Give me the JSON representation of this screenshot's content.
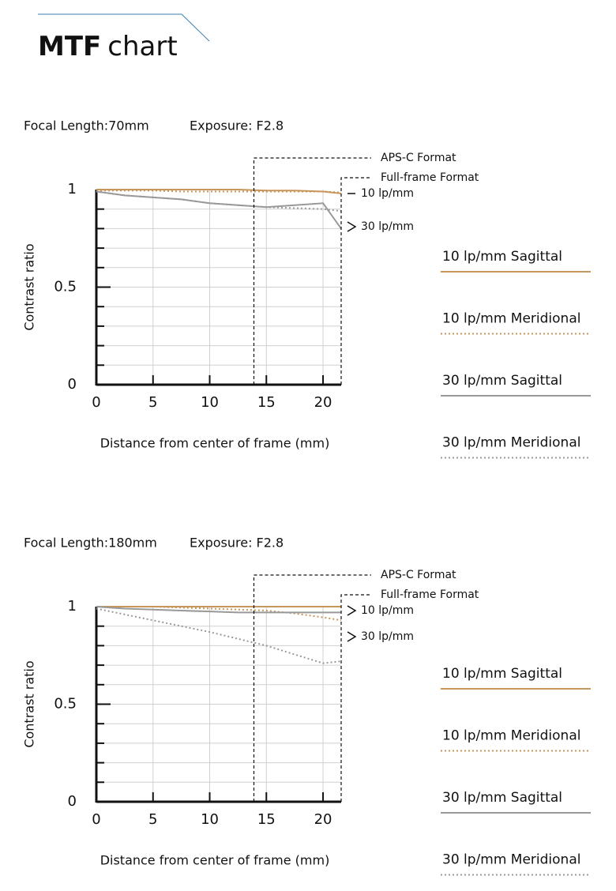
{
  "header": {
    "title_bold": "MTF",
    "title_rest": "chart"
  },
  "chart_data": [
    {
      "type": "line",
      "subtitle": "Focal Length:70mm",
      "exposure": "Exposure: F2.8",
      "x_label": "Distance from center of frame (mm)",
      "y_label": "Contrast ratio",
      "xlim": [
        0,
        21.6
      ],
      "ylim": [
        0,
        1
      ],
      "xticks": [
        0,
        5,
        10,
        15,
        20
      ],
      "yticks": [
        0,
        0.5,
        1
      ],
      "y_minor_ticks": [
        0.1,
        0.2,
        0.3,
        0.4,
        0.5,
        0.6,
        0.7,
        0.8,
        0.9
      ],
      "grid": true,
      "format_lines": [
        {
          "label": "APS-C Format",
          "x": 13.9
        },
        {
          "label": "Full-frame Format",
          "x": 21.6
        }
      ],
      "line_labels": [
        "10 lp/mm",
        "30 lp/mm"
      ],
      "x": [
        0,
        2.5,
        5,
        7.5,
        10,
        12.5,
        15,
        17.5,
        20,
        21.6
      ],
      "series": [
        {
          "name": "10 lp/mm Sagittal",
          "color": "#c8955a",
          "dash": "solid",
          "values": [
            1,
            1,
            1,
            1,
            1,
            1,
            0.995,
            0.995,
            0.99,
            0.98
          ]
        },
        {
          "name": "10 lp/mm Meridional",
          "color": "#c8955a",
          "dash": "dotted",
          "values": [
            0.995,
            0.995,
            0.995,
            0.99,
            0.99,
            0.99,
            0.99,
            0.99,
            0.99,
            0.985
          ]
        },
        {
          "name": "30 lp/mm Sagittal",
          "color": "#999999",
          "dash": "solid",
          "values": [
            0.99,
            0.97,
            0.96,
            0.95,
            0.93,
            0.92,
            0.91,
            0.92,
            0.93,
            0.8
          ]
        },
        {
          "name": "30 lp/mm Meridional",
          "color": "#999999",
          "dash": "dotted",
          "values": [
            0.99,
            0.97,
            0.96,
            0.95,
            0.93,
            0.92,
            0.91,
            0.905,
            0.9,
            0.89
          ]
        }
      ]
    },
    {
      "type": "line",
      "subtitle": "Focal Length:180mm",
      "exposure": "Exposure: F2.8",
      "x_label": "Distance from center of frame (mm)",
      "y_label": "Contrast ratio",
      "xlim": [
        0,
        21.6
      ],
      "ylim": [
        0,
        1
      ],
      "xticks": [
        0,
        5,
        10,
        15,
        20
      ],
      "yticks": [
        0,
        0.5,
        1
      ],
      "y_minor_ticks": [
        0.1,
        0.2,
        0.3,
        0.4,
        0.5,
        0.6,
        0.7,
        0.8,
        0.9
      ],
      "grid": true,
      "format_lines": [
        {
          "label": "APS-C Format",
          "x": 13.9
        },
        {
          "label": "Full-frame Format",
          "x": 21.6
        }
      ],
      "line_labels": [
        "10 lp/mm",
        "30 lp/mm"
      ],
      "x": [
        0,
        2.5,
        5,
        7.5,
        10,
        12.5,
        15,
        17.5,
        20,
        21.6
      ],
      "series": [
        {
          "name": "10 lp/mm Sagittal",
          "color": "#c8955a",
          "dash": "solid",
          "values": [
            1,
            1,
            1,
            1,
            1,
            1,
            1,
            1,
            1,
            1
          ]
        },
        {
          "name": "10 lp/mm Meridional",
          "color": "#c8955a",
          "dash": "dotted",
          "values": [
            1,
            1,
            1,
            0.995,
            0.99,
            0.985,
            0.98,
            0.965,
            0.945,
            0.93
          ]
        },
        {
          "name": "30 lp/mm Sagittal",
          "color": "#999999",
          "dash": "solid",
          "values": [
            1,
            0.99,
            0.985,
            0.98,
            0.975,
            0.97,
            0.97,
            0.97,
            0.97,
            0.97
          ]
        },
        {
          "name": "30 lp/mm Meridional",
          "color": "#999999",
          "dash": "dotted",
          "values": [
            0.99,
            0.96,
            0.93,
            0.9,
            0.87,
            0.835,
            0.8,
            0.755,
            0.71,
            0.72
          ]
        }
      ]
    }
  ]
}
